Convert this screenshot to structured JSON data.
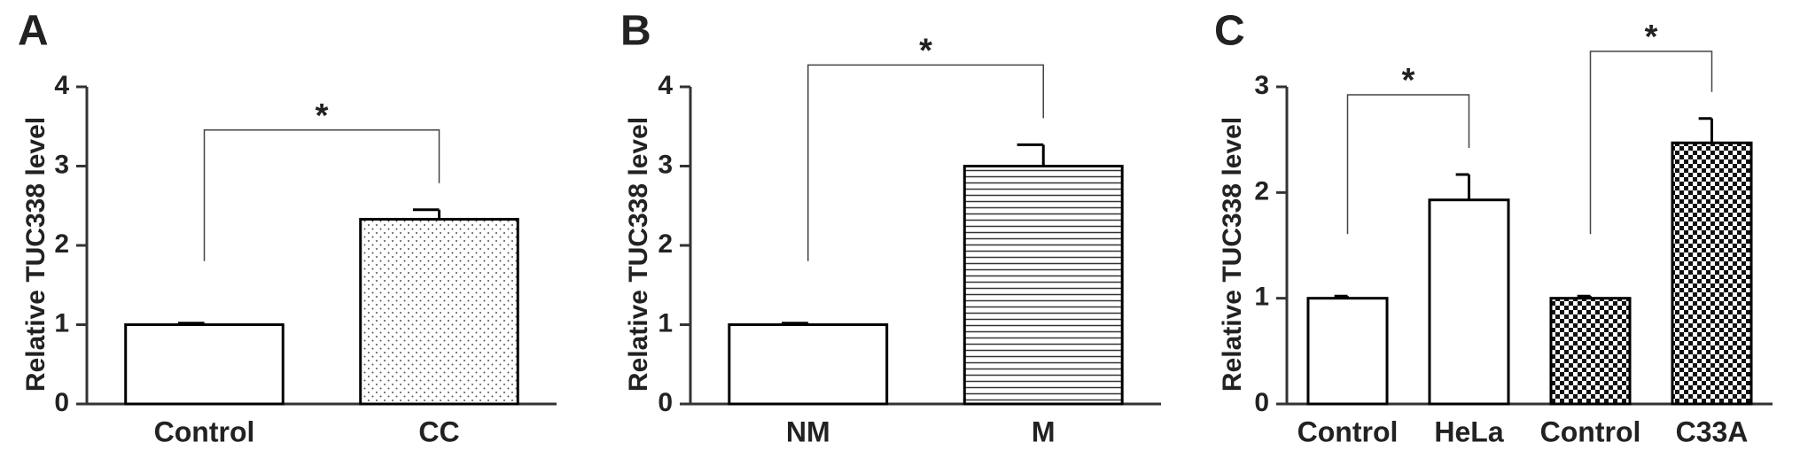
{
  "chart_data": [
    {
      "type": "bar",
      "label": "A",
      "ylabel": "Relative TUC338 level",
      "categories": [
        "Control",
        "CC"
      ],
      "values": [
        1.0,
        2.33
      ],
      "errors": [
        0.02,
        0.12
      ],
      "fills": [
        "none",
        "dots"
      ],
      "color": "#000000",
      "ylim": [
        0,
        4
      ],
      "yticks": [
        0,
        1,
        2,
        3,
        4
      ],
      "annotations": [
        "*"
      ]
    },
    {
      "type": "bar",
      "label": "B",
      "ylabel": "Relative TUC338 level",
      "categories": [
        "NM",
        "M"
      ],
      "values": [
        1.0,
        3.0
      ],
      "errors": [
        0.02,
        0.27
      ],
      "fills": [
        "none",
        "hlines"
      ],
      "color": "#000000",
      "ylim": [
        0,
        4
      ],
      "yticks": [
        0,
        1,
        2,
        3,
        4
      ],
      "annotations": [
        "*"
      ]
    },
    {
      "type": "bar",
      "label": "C",
      "ylabel": "Relative TUC338 level",
      "categories": [
        "Control",
        "HeLa",
        "Control",
        "C33A"
      ],
      "values": [
        1.0,
        1.93,
        1.0,
        2.47
      ],
      "errors": [
        0.02,
        0.24,
        0.02,
        0.23
      ],
      "fills": [
        "none",
        "none",
        "checker",
        "checker"
      ],
      "color": "#000000",
      "ylim": [
        0,
        3
      ],
      "yticks": [
        0,
        1,
        2,
        3
      ],
      "annotations": [
        "*",
        "*"
      ]
    }
  ]
}
